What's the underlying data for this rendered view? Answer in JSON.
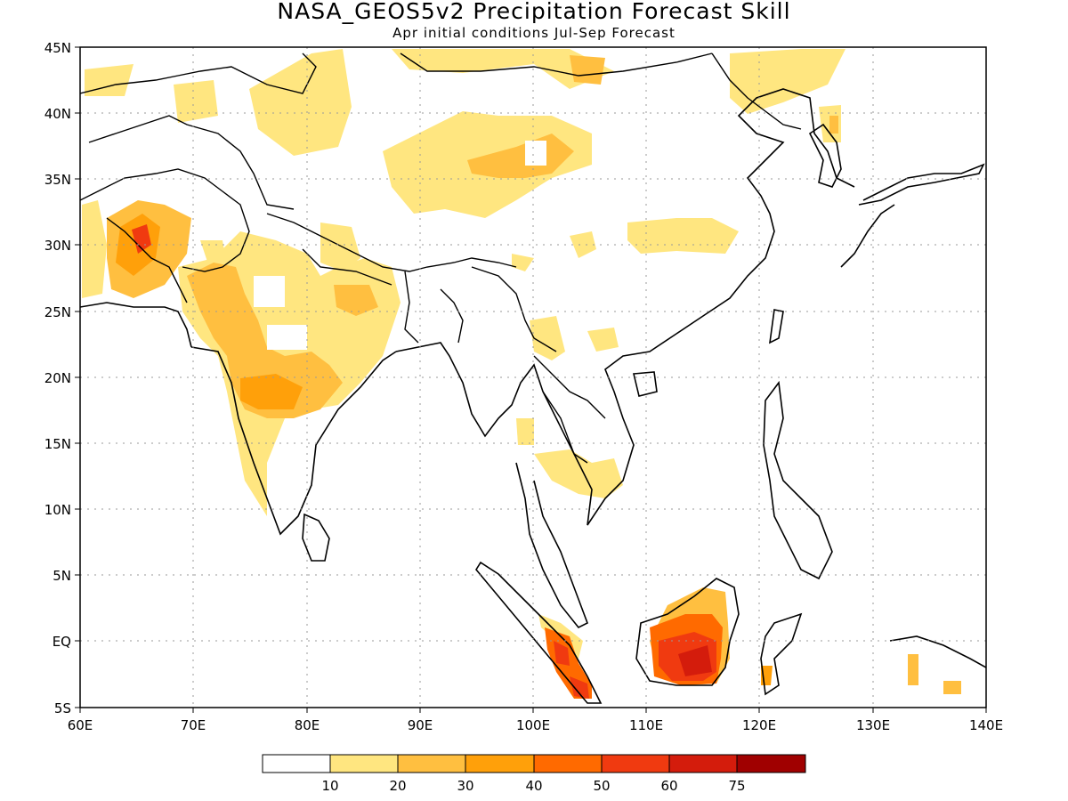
{
  "title": "NASA_GEOS5v2 Precipitation Forecast Skill",
  "subtitle": "Apr initial conditions  Jul-Sep Forecast",
  "map": {
    "lon_min": 60,
    "lon_max": 140,
    "lat_min": -5,
    "lat_max": 45,
    "lon_ticks": [
      "60E",
      "70E",
      "80E",
      "90E",
      "100E",
      "110E",
      "120E",
      "130E",
      "140E"
    ],
    "lat_ticks": [
      "45N",
      "40N",
      "35N",
      "30N",
      "25N",
      "20N",
      "15N",
      "10N",
      "5N",
      "EQ",
      "5S"
    ],
    "grid": "dotted gray at 10° longitude and 5° latitude"
  },
  "colorbar": {
    "labels": [
      "10",
      "20",
      "30",
      "40",
      "50",
      "60",
      "75"
    ],
    "colors": [
      "#ffffff",
      "#ffe680",
      "#ffbf40",
      "#ffa00a",
      "#ff6a00",
      "#f03a10",
      "#d41c0c",
      "#a00000"
    ]
  }
}
